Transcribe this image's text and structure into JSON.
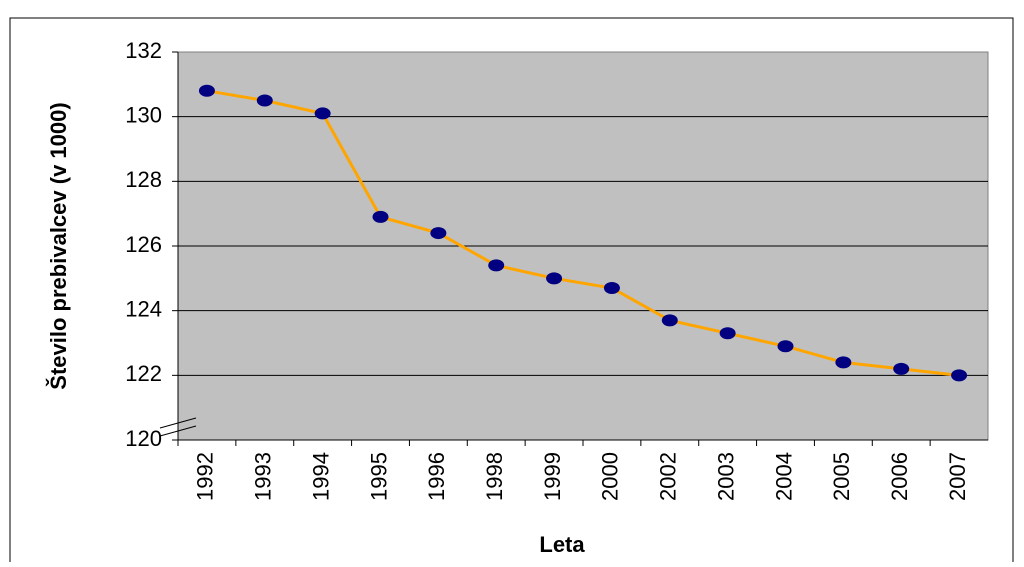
{
  "chart_data": {
    "type": "line",
    "x_label": "Leta",
    "y_label": "Število prebivalcev (v 1000)",
    "categories": [
      "1992",
      "1993",
      "1994",
      "1995",
      "1996",
      "1998",
      "1999",
      "2000",
      "2002",
      "2003",
      "2004",
      "2005",
      "2006",
      "2007"
    ],
    "series": [
      {
        "color": "#ffa500",
        "marker_color": "#000080",
        "values": [
          130.8,
          130.5,
          130.1,
          126.9,
          126.4,
          125.4,
          125.0,
          124.7,
          123.7,
          123.3,
          122.9,
          122.4,
          122.2,
          122.0
        ]
      }
    ],
    "ylim": [
      120,
      132
    ],
    "yticks": [
      120,
      122,
      124,
      126,
      128,
      130,
      132
    ],
    "grid": true
  }
}
